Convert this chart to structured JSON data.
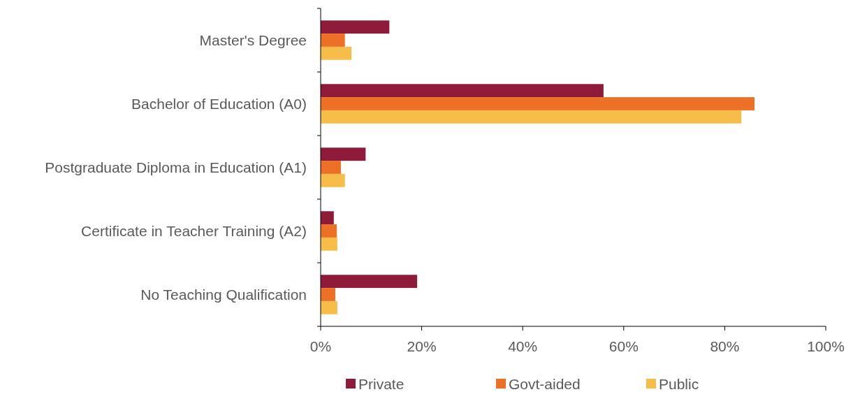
{
  "chart_data": {
    "type": "bar",
    "orientation": "horizontal",
    "categories": [
      "Master's Degree",
      "Bachelor of Education (A0)",
      "Postgraduate Diploma in Education (A1)",
      "Certificate in Teacher Training (A2)",
      "No Teaching Qualification"
    ],
    "series": [
      {
        "name": "Private",
        "color": "#8f1b3a",
        "values": [
          13.6,
          56,
          8.9,
          2.6,
          19.1
        ]
      },
      {
        "name": "Govt-aided",
        "color": "#ec7026",
        "values": [
          4.8,
          85.9,
          4,
          3.2,
          2.9
        ]
      },
      {
        "name": "Public",
        "color": "#f6bd48",
        "values": [
          6.1,
          83.3,
          4.8,
          3.3,
          3.3
        ]
      }
    ],
    "xlim": [
      0,
      100
    ],
    "xticks": [
      {
        "value": 0,
        "label": "0%"
      },
      {
        "value": 20,
        "label": "20%"
      },
      {
        "value": 40,
        "label": "40%"
      },
      {
        "value": 60,
        "label": "60%"
      },
      {
        "value": 80,
        "label": "80%"
      },
      {
        "value": 100,
        "label": "100%"
      }
    ],
    "grid": false,
    "legend": "bottom"
  }
}
